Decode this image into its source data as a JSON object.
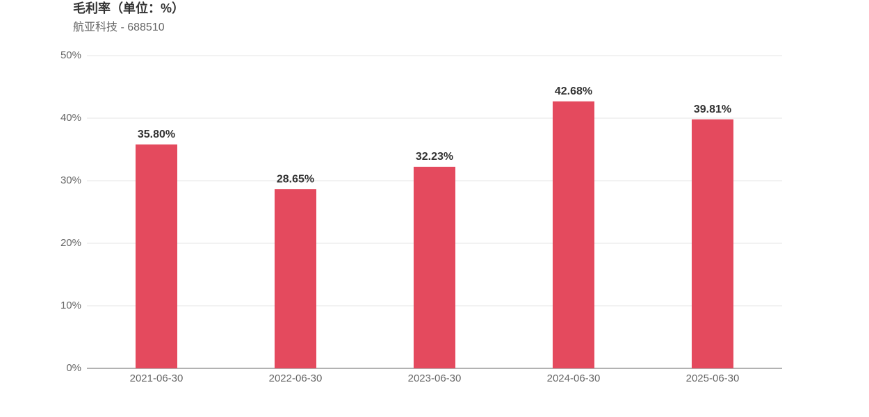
{
  "chart_data": {
    "type": "bar",
    "title": "毛利率（单位：%）",
    "subtitle": "航亚科技 - 688510",
    "categories": [
      "2021-06-30",
      "2022-06-30",
      "2023-06-30",
      "2024-06-30",
      "2025-06-30"
    ],
    "values": [
      35.8,
      28.65,
      32.23,
      42.68,
      39.81
    ],
    "value_labels": [
      "35.80%",
      "28.65%",
      "32.23%",
      "42.68%",
      "39.81%"
    ],
    "color": "#e44a5e",
    "ylim": [
      0,
      50
    ],
    "yticks": [
      {
        "value": 0,
        "label": "0%"
      },
      {
        "value": 10,
        "label": "10%"
      },
      {
        "value": 20,
        "label": "20%"
      },
      {
        "value": 30,
        "label": "30%"
      },
      {
        "value": 40,
        "label": "40%"
      },
      {
        "value": 50,
        "label": "50%"
      }
    ],
    "grid": true
  }
}
